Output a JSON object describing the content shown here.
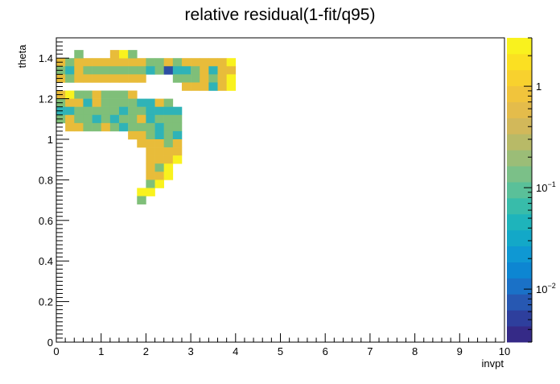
{
  "chart_data": {
    "type": "heatmap",
    "title": "relative residual(1-fit/q95)",
    "xlabel": "invpt",
    "ylabel": "theta",
    "xlim": [
      0,
      10
    ],
    "ylim": [
      0,
      1.5
    ],
    "x_ticks": [
      "0",
      "1",
      "2",
      "3",
      "4",
      "5",
      "6",
      "7",
      "8",
      "9",
      "10"
    ],
    "y_ticks": [
      "0",
      "0.2",
      "0.4",
      "0.6",
      "0.8",
      "1",
      "1.2",
      "1.4"
    ],
    "colorbar": {
      "scale": "log",
      "range": [
        0.003,
        3
      ],
      "tick_labels": [
        {
          "label": "10",
          "exp": "−2",
          "value": 0.01
        },
        {
          "label": "10",
          "exp": "−1",
          "value": 0.1
        },
        {
          "label": "1",
          "exp": "",
          "value": 1
        }
      ]
    },
    "bins": {
      "x_width": 0.2,
      "y_width": 0.04,
      "x_start": 0,
      "y_start": 0
    },
    "cells": [
      [
        0.0,
        1.36,
        "ye"
      ],
      [
        0.2,
        1.36,
        "gr"
      ],
      [
        0.4,
        1.36,
        "ye"
      ],
      [
        0.6,
        1.36,
        "ye"
      ],
      [
        0.8,
        1.36,
        "ye"
      ],
      [
        1.0,
        1.36,
        "ye"
      ],
      [
        1.2,
        1.36,
        "ye"
      ],
      [
        1.4,
        1.36,
        "ye"
      ],
      [
        1.6,
        1.36,
        "ye"
      ],
      [
        1.8,
        1.36,
        "ye"
      ],
      [
        2.0,
        1.36,
        "gr"
      ],
      [
        2.2,
        1.36,
        "gr"
      ],
      [
        2.4,
        1.36,
        "ye"
      ],
      [
        2.6,
        1.36,
        "gr"
      ],
      [
        2.8,
        1.36,
        "ye"
      ],
      [
        3.0,
        1.36,
        "ye"
      ],
      [
        3.2,
        1.36,
        "ye"
      ],
      [
        3.4,
        1.36,
        "ye"
      ],
      [
        3.6,
        1.36,
        "ye"
      ],
      [
        3.8,
        1.36,
        "br"
      ],
      [
        0.4,
        1.4,
        "gr"
      ],
      [
        1.2,
        1.4,
        "ye"
      ],
      [
        1.4,
        1.4,
        "br"
      ],
      [
        1.6,
        1.4,
        "gr"
      ],
      [
        0.0,
        1.32,
        "gr"
      ],
      [
        0.2,
        1.32,
        "cy"
      ],
      [
        0.4,
        1.32,
        "ye"
      ],
      [
        0.6,
        1.32,
        "gr"
      ],
      [
        0.8,
        1.32,
        "gr"
      ],
      [
        1.0,
        1.32,
        "gr"
      ],
      [
        1.2,
        1.32,
        "gr"
      ],
      [
        1.4,
        1.32,
        "gr"
      ],
      [
        1.6,
        1.32,
        "gr"
      ],
      [
        1.8,
        1.32,
        "gr"
      ],
      [
        2.0,
        1.32,
        "cy"
      ],
      [
        2.2,
        1.32,
        "gr"
      ],
      [
        2.4,
        1.32,
        "bl"
      ],
      [
        2.6,
        1.32,
        "cy"
      ],
      [
        2.8,
        1.32,
        "cy"
      ],
      [
        3.0,
        1.32,
        "gr"
      ],
      [
        3.2,
        1.32,
        "ye"
      ],
      [
        3.4,
        1.32,
        "cy"
      ],
      [
        3.6,
        1.32,
        "ye"
      ],
      [
        3.8,
        1.32,
        "ye"
      ],
      [
        0.0,
        1.28,
        "ye"
      ],
      [
        0.2,
        1.28,
        "gr"
      ],
      [
        0.4,
        1.28,
        "ye"
      ],
      [
        0.6,
        1.28,
        "ye"
      ],
      [
        0.8,
        1.28,
        "ye"
      ],
      [
        1.0,
        1.28,
        "ye"
      ],
      [
        1.2,
        1.28,
        "ye"
      ],
      [
        1.4,
        1.28,
        "ye"
      ],
      [
        1.6,
        1.28,
        "ye"
      ],
      [
        1.8,
        1.28,
        "ye"
      ],
      [
        2.6,
        1.28,
        "gr"
      ],
      [
        2.8,
        1.28,
        "gr"
      ],
      [
        3.0,
        1.28,
        "gr"
      ],
      [
        3.2,
        1.28,
        "ye"
      ],
      [
        3.4,
        1.28,
        "gr"
      ],
      [
        3.6,
        1.28,
        "ye"
      ],
      [
        3.8,
        1.28,
        "br"
      ],
      [
        2.8,
        1.24,
        "ye"
      ],
      [
        3.0,
        1.24,
        "ye"
      ],
      [
        3.2,
        1.24,
        "ye"
      ],
      [
        3.4,
        1.24,
        "cy"
      ],
      [
        3.6,
        1.24,
        "ye"
      ],
      [
        3.8,
        1.24,
        "br"
      ],
      [
        0.0,
        1.2,
        "ye"
      ],
      [
        0.2,
        1.2,
        "br"
      ],
      [
        0.4,
        1.2,
        "gr"
      ],
      [
        0.6,
        1.2,
        "gr"
      ],
      [
        0.8,
        1.2,
        "ye"
      ],
      [
        1.0,
        1.2,
        "gr"
      ],
      [
        1.2,
        1.2,
        "gr"
      ],
      [
        1.4,
        1.2,
        "gr"
      ],
      [
        1.6,
        1.2,
        "ye"
      ],
      [
        0.0,
        1.16,
        "gr"
      ],
      [
        0.2,
        1.16,
        "ye"
      ],
      [
        0.4,
        1.16,
        "ye"
      ],
      [
        0.6,
        1.16,
        "cy"
      ],
      [
        0.8,
        1.16,
        "ye"
      ],
      [
        1.0,
        1.16,
        "gr"
      ],
      [
        1.2,
        1.16,
        "gr"
      ],
      [
        1.4,
        1.16,
        "gr"
      ],
      [
        1.6,
        1.16,
        "gr"
      ],
      [
        1.8,
        1.16,
        "cy"
      ],
      [
        2.0,
        1.16,
        "cy"
      ],
      [
        2.2,
        1.16,
        "ye"
      ],
      [
        2.4,
        1.16,
        "gr"
      ],
      [
        0.0,
        1.12,
        "cy"
      ],
      [
        0.2,
        1.12,
        "cy"
      ],
      [
        0.4,
        1.12,
        "gr"
      ],
      [
        0.6,
        1.12,
        "gr"
      ],
      [
        0.8,
        1.12,
        "gr"
      ],
      [
        1.0,
        1.12,
        "gr"
      ],
      [
        1.2,
        1.12,
        "gr"
      ],
      [
        1.4,
        1.12,
        "cy"
      ],
      [
        1.6,
        1.12,
        "gr"
      ],
      [
        1.8,
        1.12,
        "gr"
      ],
      [
        2.0,
        1.12,
        "cy"
      ],
      [
        2.2,
        1.12,
        "cy"
      ],
      [
        2.4,
        1.12,
        "cy"
      ],
      [
        2.6,
        1.12,
        "cy"
      ],
      [
        0.0,
        1.08,
        "gr"
      ],
      [
        0.2,
        1.08,
        "ye"
      ],
      [
        0.4,
        1.08,
        "gr"
      ],
      [
        0.6,
        1.08,
        "gr"
      ],
      [
        0.8,
        1.08,
        "cy"
      ],
      [
        1.0,
        1.08,
        "gr"
      ],
      [
        1.2,
        1.08,
        "cy"
      ],
      [
        1.4,
        1.08,
        "gr"
      ],
      [
        1.6,
        1.08,
        "gr"
      ],
      [
        1.8,
        1.08,
        "ye"
      ],
      [
        2.0,
        1.08,
        "cy"
      ],
      [
        2.2,
        1.08,
        "gr"
      ],
      [
        2.4,
        1.08,
        "gr"
      ],
      [
        2.6,
        1.08,
        "gr"
      ],
      [
        0.2,
        1.04,
        "ye"
      ],
      [
        0.4,
        1.04,
        "ye"
      ],
      [
        0.6,
        1.04,
        "gr"
      ],
      [
        0.8,
        1.04,
        "gr"
      ],
      [
        1.0,
        1.04,
        "ye"
      ],
      [
        1.2,
        1.04,
        "gr"
      ],
      [
        1.4,
        1.04,
        "cy"
      ],
      [
        1.6,
        1.04,
        "gr"
      ],
      [
        1.8,
        1.04,
        "gr"
      ],
      [
        2.0,
        1.04,
        "gr"
      ],
      [
        2.2,
        1.04,
        "cy"
      ],
      [
        2.4,
        1.04,
        "gr"
      ],
      [
        2.6,
        1.04,
        "gr"
      ],
      [
        1.6,
        1.0,
        "ye"
      ],
      [
        1.8,
        1.0,
        "ye"
      ],
      [
        2.0,
        1.0,
        "gr"
      ],
      [
        2.2,
        1.0,
        "cy"
      ],
      [
        2.4,
        1.0,
        "gr"
      ],
      [
        2.6,
        1.0,
        "cy"
      ],
      [
        1.8,
        0.96,
        "ye"
      ],
      [
        2.0,
        0.96,
        "ye"
      ],
      [
        2.2,
        0.96,
        "ye"
      ],
      [
        2.4,
        0.96,
        "gr"
      ],
      [
        2.6,
        0.96,
        "ye"
      ],
      [
        2.0,
        0.92,
        "ye"
      ],
      [
        2.2,
        0.92,
        "ye"
      ],
      [
        2.4,
        0.92,
        "ye"
      ],
      [
        2.6,
        0.92,
        "ye"
      ],
      [
        2.0,
        0.88,
        "ye"
      ],
      [
        2.2,
        0.88,
        "ye"
      ],
      [
        2.4,
        0.88,
        "ye"
      ],
      [
        2.6,
        0.88,
        "br"
      ],
      [
        2.0,
        0.84,
        "ye"
      ],
      [
        2.2,
        0.84,
        "gr"
      ],
      [
        2.4,
        0.84,
        "br"
      ],
      [
        2.0,
        0.8,
        "ye"
      ],
      [
        2.2,
        0.8,
        "ye"
      ],
      [
        2.4,
        0.8,
        "br"
      ],
      [
        2.0,
        0.76,
        "gr"
      ],
      [
        2.2,
        0.76,
        "br"
      ],
      [
        1.8,
        0.72,
        "br"
      ],
      [
        2.0,
        0.72,
        "br"
      ],
      [
        1.8,
        0.68,
        "gr"
      ]
    ],
    "palette": {
      "ye": "#e8bc3a",
      "br": "#f9f21e",
      "gr": "#7fbf79",
      "cy": "#2fb3b7",
      "bl": "#2c4fa3"
    },
    "colorbar_colors": [
      "#352a87",
      "#2e3f9d",
      "#2758b2",
      "#1a71c7",
      "#0d86d2",
      "#0f98d3",
      "#13a8c8",
      "#1eb4bb",
      "#38bcaa",
      "#5ac099",
      "#7bc088",
      "#9bbd77",
      "#b8ba67",
      "#d2b85a",
      "#e4bc4b",
      "#f1c43c",
      "#f8d12e",
      "#fbe022",
      "#f9f21e"
    ]
  }
}
